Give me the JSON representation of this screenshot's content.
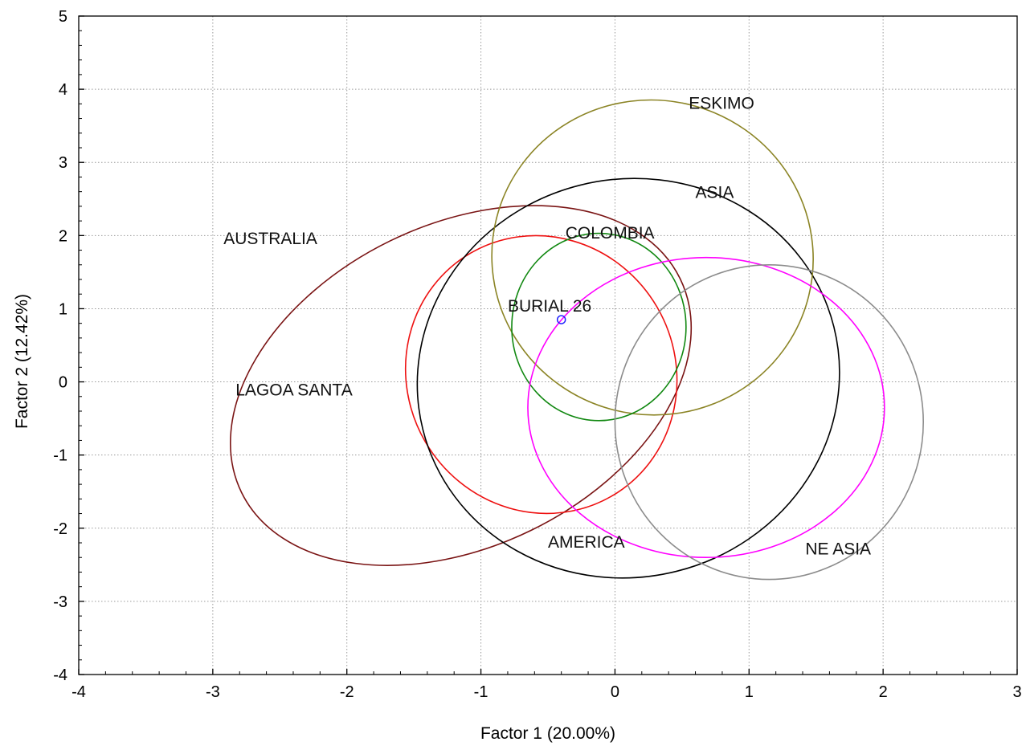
{
  "chart_data": {
    "type": "scatter",
    "xlabel": "Factor 1 (20.00%)",
    "ylabel": "Factor 2 (12.42%)",
    "xlim": [
      -4,
      3
    ],
    "ylim": [
      -4,
      5
    ],
    "grid": true,
    "x_ticks": [
      -4,
      -3,
      -2,
      -1,
      0,
      1,
      2,
      3
    ],
    "y_ticks": [
      -4,
      -3,
      -2,
      -1,
      0,
      1,
      2,
      3,
      4,
      5
    ],
    "x_tick_labels": [
      "-4",
      "-3",
      "-2",
      "-1",
      "0",
      "1",
      "2",
      "3"
    ],
    "y_tick_labels": [
      "-4",
      "-3",
      "-2",
      "-1",
      "0",
      "1",
      "2",
      "3",
      "4",
      "5"
    ],
    "points": [
      {
        "label": "BURIAL 26",
        "x": -0.4,
        "y": 0.85,
        "color": "#2222ff"
      }
    ],
    "ellipses": [
      {
        "label": "AUSTRALIA",
        "color": "#7a1414",
        "cx": -1.15,
        "cy": -0.05,
        "rx": 1.82,
        "ry": 2.2,
        "angle_deg": -26
      },
      {
        "label": "LAGOA SANTA",
        "color": "#ee1111",
        "cx": -0.55,
        "cy": 0.1,
        "rx": 1.0,
        "ry": 1.92,
        "angle_deg": -30
      },
      {
        "label": "AMERICA",
        "color": "#000000",
        "cx": 0.1,
        "cy": 0.05,
        "rx": 1.58,
        "ry": 2.72,
        "angle_deg": -14
      },
      {
        "label": "ESKIMO",
        "color": "#8b8425",
        "cx": 0.28,
        "cy": 1.7,
        "rx": 1.2,
        "ry": 2.15,
        "angle_deg": 14
      },
      {
        "label": "COLOMBIA",
        "color": "#118811",
        "cx": -0.12,
        "cy": 0.75,
        "rx": 0.65,
        "ry": 1.28,
        "angle_deg": 0
      },
      {
        "label": "NE ASIA",
        "color": "#ff00ff",
        "cx": 0.68,
        "cy": -0.35,
        "rx": 1.33,
        "ry": 2.05,
        "angle_deg": 0
      },
      {
        "label": "ASIA",
        "color": "#8c8c8c",
        "cx": 1.15,
        "cy": -0.55,
        "rx": 1.15,
        "ry": 2.15,
        "angle_deg": 0
      }
    ],
    "annotations": [
      {
        "text": "ESKIMO",
        "x": 0.55,
        "y": 3.82
      },
      {
        "text": "ASIA",
        "x": 0.6,
        "y": 2.6
      },
      {
        "text": "AUSTRALIA",
        "x": -2.92,
        "y": 1.97
      },
      {
        "text": "COLOMBIA",
        "x": -0.37,
        "y": 2.05
      },
      {
        "text": "BURIAL 26",
        "x": -0.8,
        "y": 1.05
      },
      {
        "text": "LAGOA SANTA",
        "x": -2.83,
        "y": -0.1
      },
      {
        "text": "AMERICA",
        "x": -0.5,
        "y": -2.18
      },
      {
        "text": "NE ASIA",
        "x": 1.42,
        "y": -2.27
      }
    ]
  }
}
